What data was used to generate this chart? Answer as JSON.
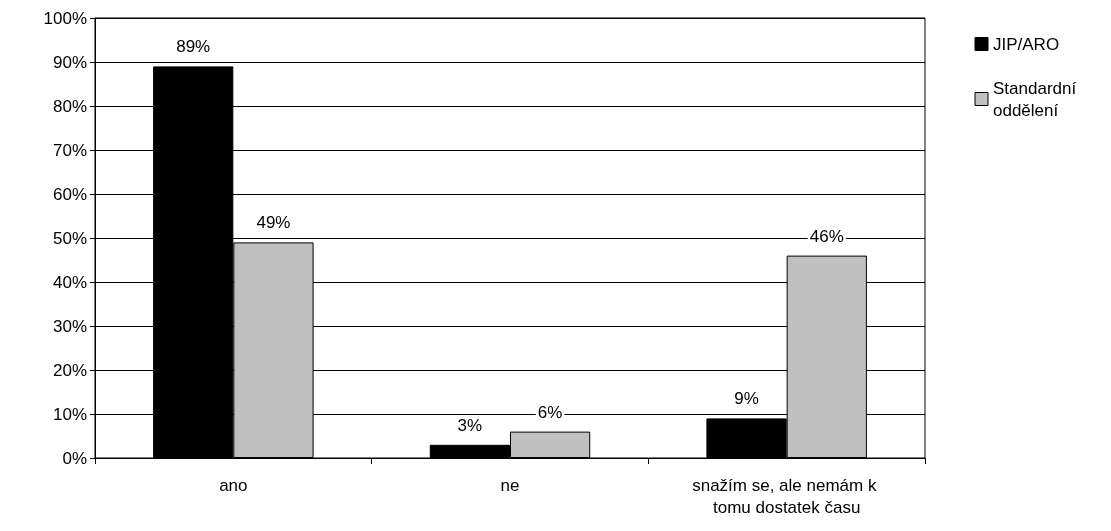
{
  "chart_data": {
    "type": "bar",
    "categories": [
      "ano",
      "ne",
      "snažím se, ale nemám k tomu dostatek času"
    ],
    "series": [
      {
        "name": "JIP/ARO",
        "color": "#000000",
        "values": [
          89,
          3,
          9
        ],
        "value_labels": [
          "89%",
          "3%",
          "9%"
        ]
      },
      {
        "name": "Standardní oddělení",
        "color": "#c0c0c0",
        "values": [
          49,
          6,
          46
        ],
        "value_labels": [
          "49%",
          "6%",
          "46%"
        ]
      }
    ],
    "ylim": [
      0,
      100
    ],
    "yticks": [
      {
        "value": 0,
        "label": "0%"
      },
      {
        "value": 10,
        "label": "10%"
      },
      {
        "value": 20,
        "label": "20%"
      },
      {
        "value": 30,
        "label": "30%"
      },
      {
        "value": 40,
        "label": "40%"
      },
      {
        "value": 50,
        "label": "50%"
      },
      {
        "value": 60,
        "label": "60%"
      },
      {
        "value": 70,
        "label": "70%"
      },
      {
        "value": 80,
        "label": "80%"
      },
      {
        "value": 90,
        "label": "90%"
      },
      {
        "value": 100,
        "label": "100%"
      }
    ],
    "grid": "y",
    "legend": "right"
  }
}
